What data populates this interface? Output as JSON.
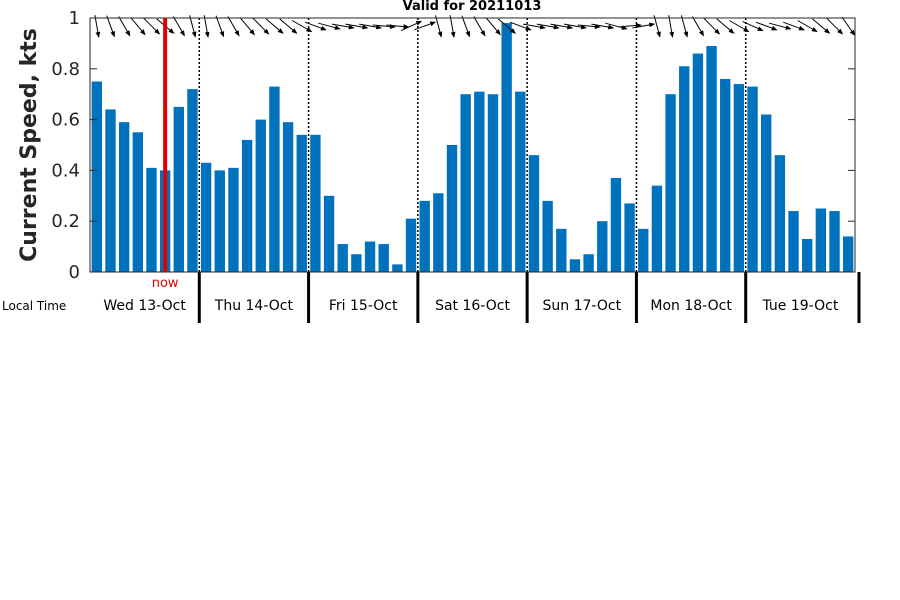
{
  "chart_data": {
    "type": "bar",
    "title": "Valid for 20211013",
    "ylabel": "Current Speed, kts",
    "ylim": [
      0,
      1
    ],
    "yticks": [
      "0",
      "0.2",
      "0.4",
      "0.6",
      "0.8",
      "1"
    ],
    "grid": false,
    "bar_color": "#0072bd",
    "local_time_label": "Local Time",
    "now_label": "now",
    "now_color": "#e00000",
    "now_position": 5.5,
    "days": [
      {
        "label": "Wed 13-Oct",
        "values": [
          0.75,
          0.64,
          0.59,
          0.55,
          0.41,
          0.4,
          0.65,
          0.72
        ]
      },
      {
        "label": "Thu 14-Oct",
        "values": [
          0.43,
          0.4,
          0.41,
          0.52,
          0.6,
          0.73,
          0.59,
          0.54
        ]
      },
      {
        "label": "Fri 15-Oct",
        "values": [
          0.54,
          0.3,
          0.11,
          0.07,
          0.12,
          0.11,
          0.03,
          0.21
        ]
      },
      {
        "label": "Sat 16-Oct",
        "values": [
          0.28,
          0.31,
          0.5,
          0.7,
          0.71,
          0.7,
          0.98,
          0.71
        ]
      },
      {
        "label": "Sun 17-Oct",
        "values": [
          0.46,
          0.28,
          0.17,
          0.05,
          0.07,
          0.2,
          0.37,
          0.27
        ]
      },
      {
        "label": "Mon 18-Oct",
        "values": [
          0.17,
          0.34,
          0.7,
          0.81,
          0.86,
          0.89,
          0.76,
          0.74
        ]
      },
      {
        "label": "Tue 19-Oct",
        "values": [
          0.73,
          0.62,
          0.46,
          0.24,
          0.13,
          0.25,
          0.24,
          0.14
        ]
      }
    ],
    "arrow_directions_deg": [
      170,
      160,
      150,
      140,
      135,
      130,
      150,
      165,
      170,
      160,
      150,
      140,
      135,
      130,
      130,
      120,
      110,
      105,
      100,
      100,
      100,
      95,
      95,
      65,
      70,
      165,
      170,
      160,
      150,
      140,
      130,
      110,
      100,
      100,
      100,
      100,
      95,
      100,
      105,
      85,
      80,
      165,
      170,
      165,
      150,
      135,
      130,
      120,
      115,
      110,
      105,
      110,
      120,
      130,
      135,
      145
    ]
  }
}
